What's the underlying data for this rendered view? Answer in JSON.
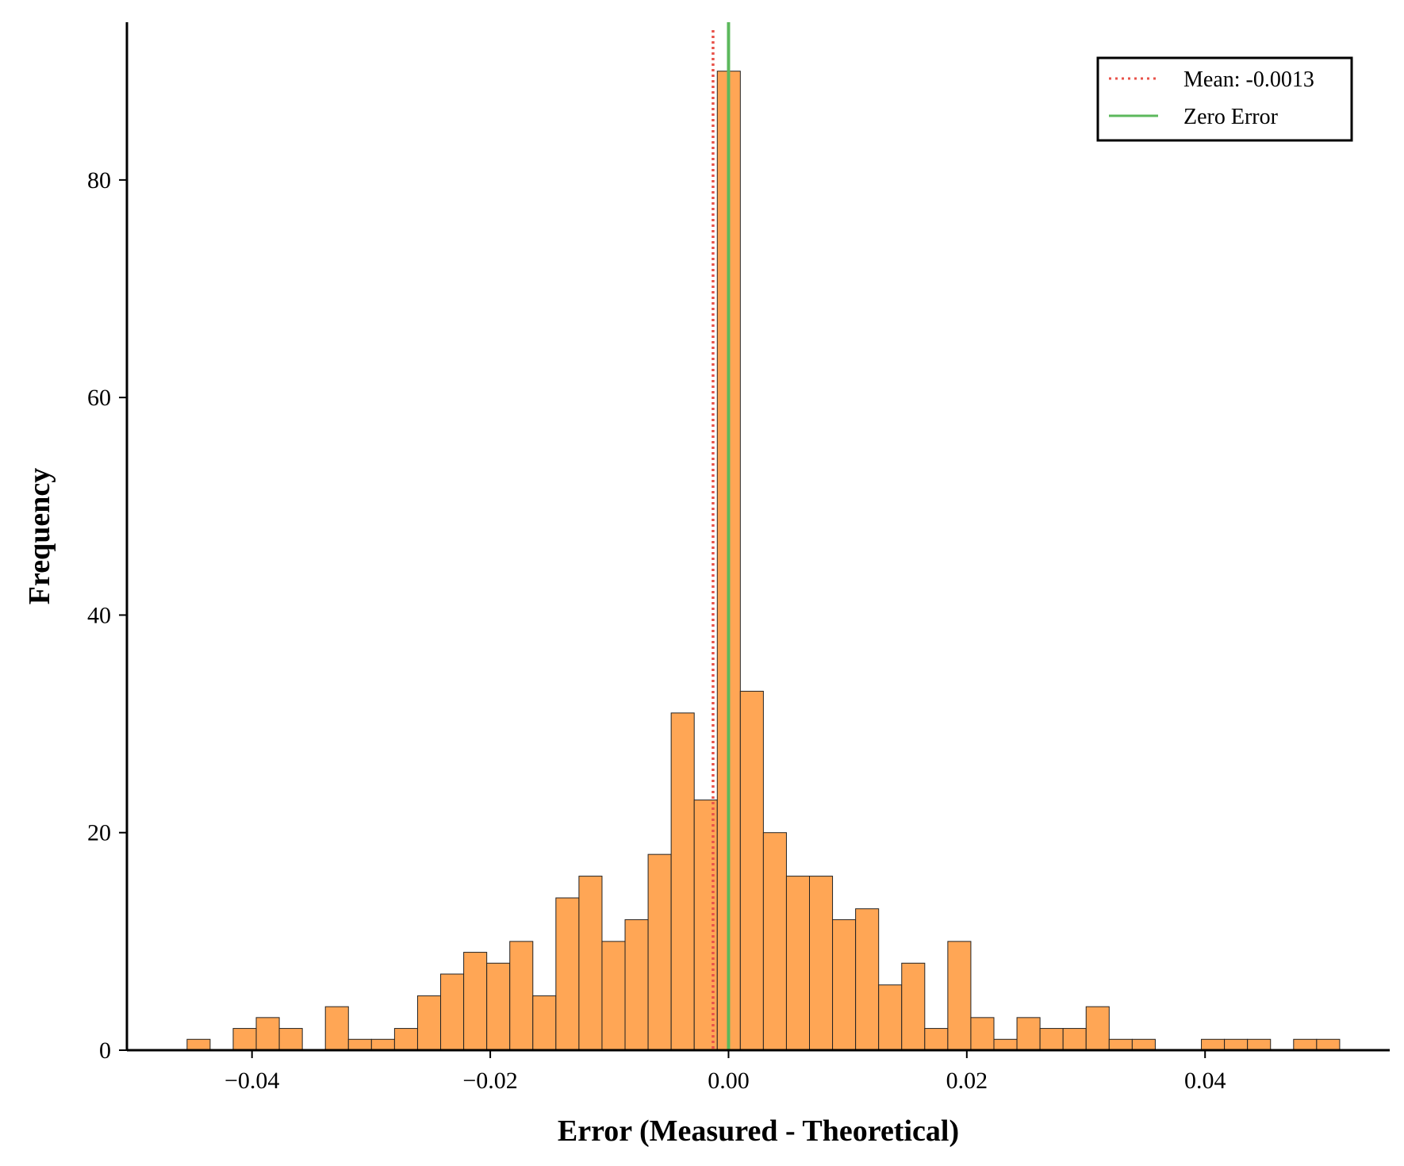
{
  "chart_data": {
    "type": "bar",
    "title": "",
    "xlabel": "Error (Measured - Theoretical)",
    "ylabel": "Frequency",
    "xlim": [
      -0.0505,
      0.0555
    ],
    "ylim": [
      0,
      94.5
    ],
    "grid": false,
    "legend_position": "top-right",
    "x_ticks": [
      {
        "value": -0.04,
        "label": "−0.04"
      },
      {
        "value": -0.02,
        "label": "−0.02"
      },
      {
        "value": 0.0,
        "label": "0.00"
      },
      {
        "value": 0.02,
        "label": "0.02"
      },
      {
        "value": 0.04,
        "label": "0.04"
      }
    ],
    "y_ticks": [
      {
        "value": 0,
        "label": "0"
      },
      {
        "value": 20,
        "label": "20"
      },
      {
        "value": 40,
        "label": "40"
      },
      {
        "value": 60,
        "label": "60"
      },
      {
        "value": 80,
        "label": "80"
      }
    ],
    "bar_color": "#ffa655",
    "bar_edge_color": "#222222",
    "bins": {
      "start": -0.04545,
      "width": 0.001935,
      "counts": [
        1,
        0,
        2,
        3,
        2,
        0,
        4,
        1,
        1,
        2,
        5,
        7,
        9,
        8,
        10,
        5,
        14,
        16,
        10,
        12,
        18,
        31,
        23,
        90,
        33,
        20,
        16,
        16,
        12,
        13,
        6,
        8,
        2,
        10,
        3,
        1,
        3,
        2,
        2,
        4,
        1,
        1,
        0,
        0,
        1,
        1,
        1,
        0,
        1,
        1
      ]
    },
    "reference_lines": [
      {
        "name": "Mean: -0.0013",
        "x": -0.0013,
        "color": "#e8524a",
        "style": "dotted"
      },
      {
        "name": "Zero Error",
        "x": 0.0,
        "color": "#5cb85c",
        "style": "solid"
      }
    ]
  }
}
